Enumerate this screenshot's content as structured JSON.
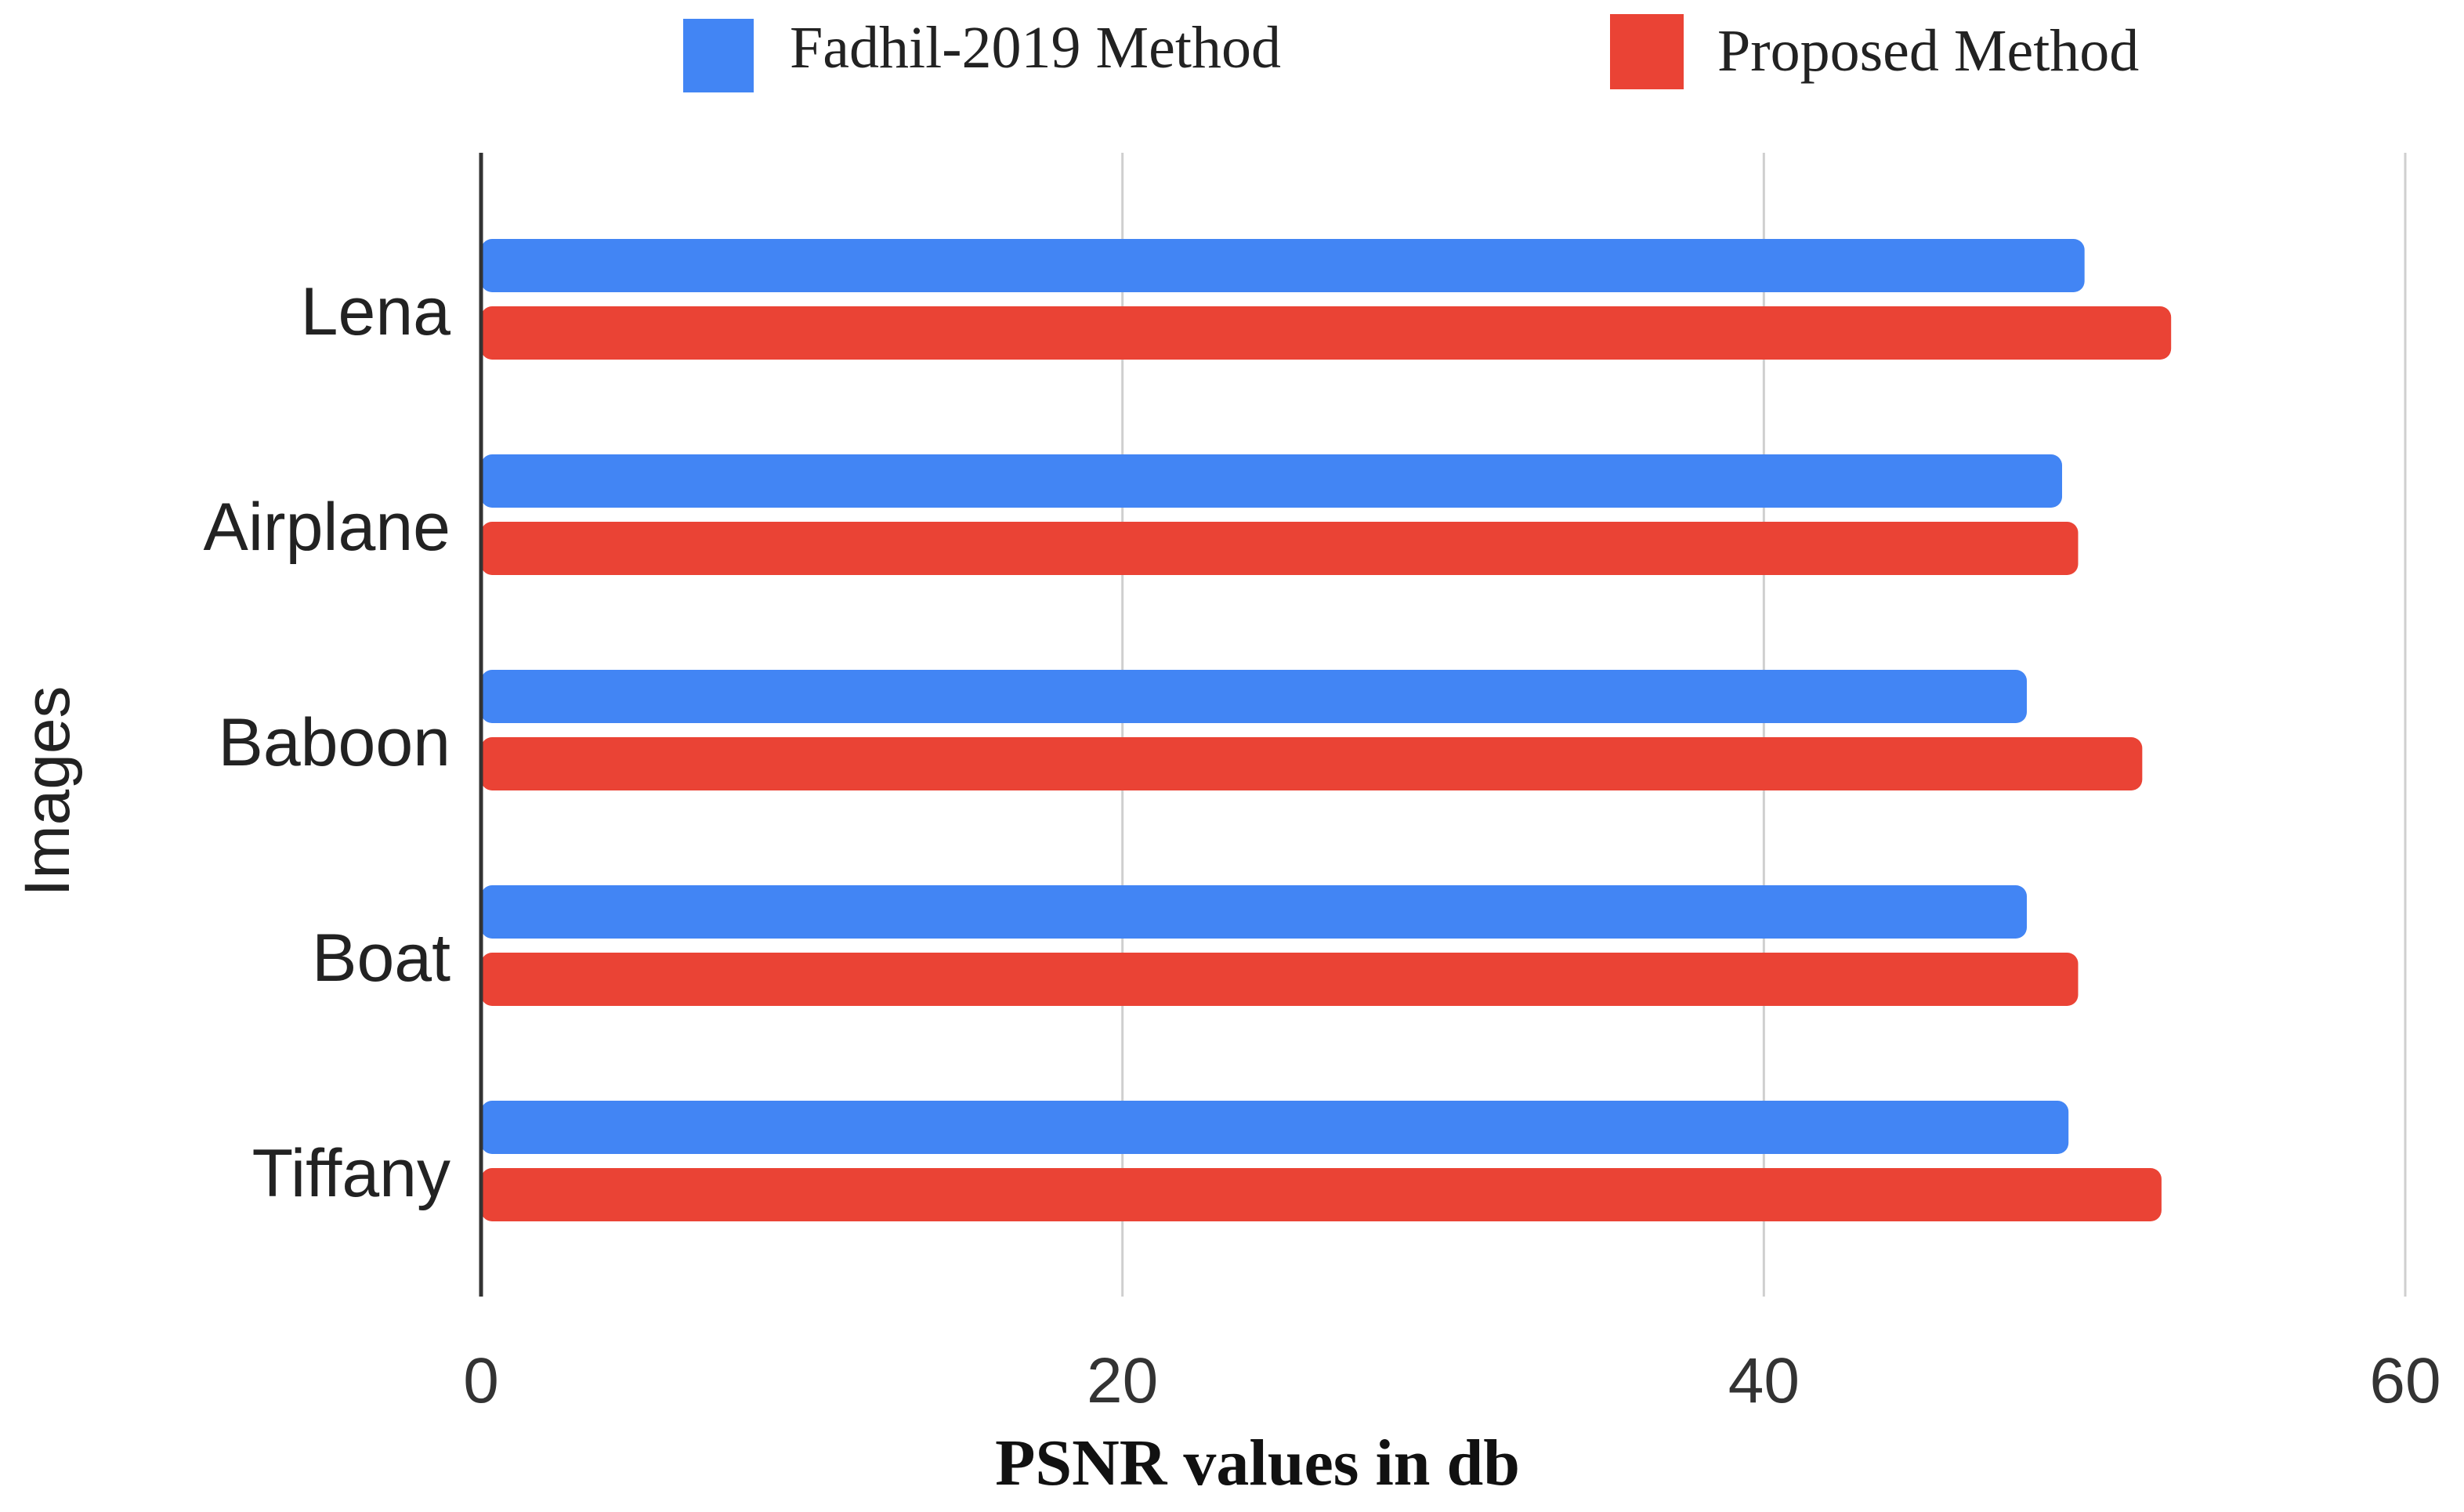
{
  "chart_data": {
    "type": "bar",
    "orientation": "horizontal",
    "title": "",
    "xlabel": "PSNR values in db",
    "ylabel": "Images",
    "xlim": [
      0,
      60
    ],
    "xticks": [
      0,
      20,
      40,
      60
    ],
    "grid": true,
    "legend_position": "top",
    "categories": [
      "Lena",
      "Airplane",
      "Baboon",
      "Boat",
      "Tiffany"
    ],
    "series": [
      {
        "name": "Fadhil-2019 Method",
        "color": "#4285F4",
        "values": [
          50.0,
          49.3,
          48.2,
          48.2,
          49.5
        ]
      },
      {
        "name": "Proposed Method",
        "color": "#EA4335",
        "values": [
          52.7,
          49.8,
          51.8,
          49.8,
          52.4
        ]
      }
    ]
  }
}
